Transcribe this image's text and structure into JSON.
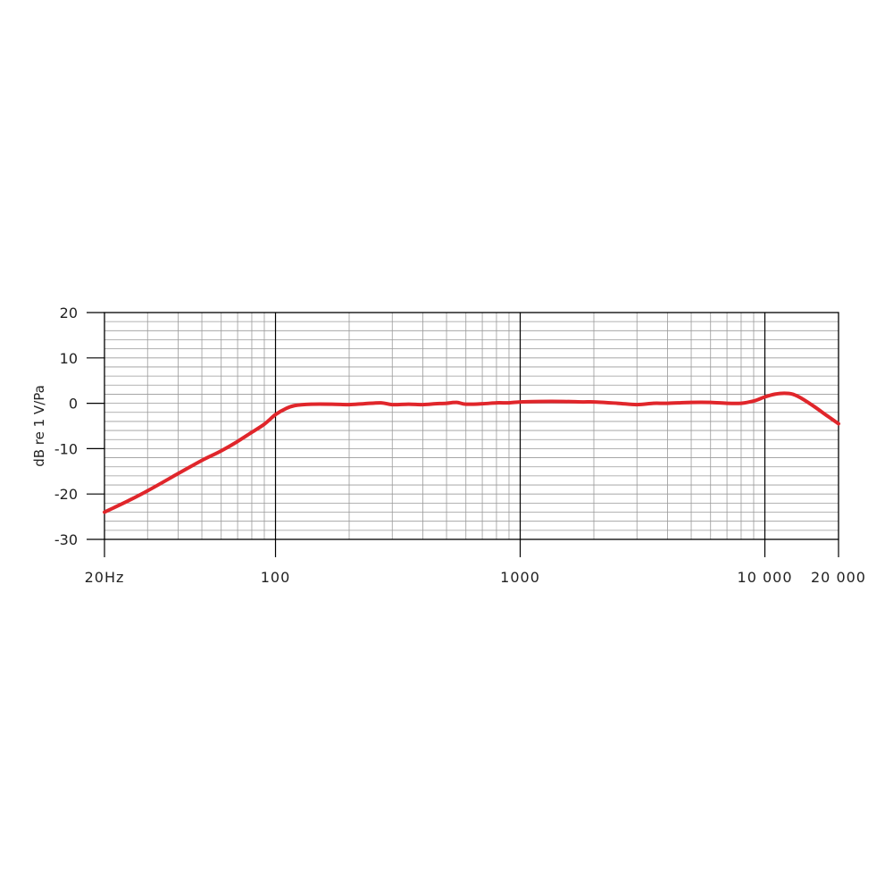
{
  "chart_data": {
    "type": "line",
    "xlabel": "",
    "ylabel": "dB re 1 V/Pa",
    "x_scale": "log",
    "xlim": [
      20,
      20000
    ],
    "ylim": [
      -30,
      20
    ],
    "grid": true,
    "x_ticks": [
      {
        "value": 20,
        "label": "20Hz"
      },
      {
        "value": 100,
        "label": "100"
      },
      {
        "value": 1000,
        "label": "1000"
      },
      {
        "value": 10000,
        "label": "10 000"
      },
      {
        "value": 20000,
        "label": "20 000"
      }
    ],
    "y_ticks": [
      {
        "value": 20,
        "label": "20"
      },
      {
        "value": 10,
        "label": "10"
      },
      {
        "value": 0,
        "label": "0"
      },
      {
        "value": -10,
        "label": "-10"
      },
      {
        "value": -20,
        "label": "-20"
      },
      {
        "value": -30,
        "label": "-30"
      }
    ],
    "series": [
      {
        "color": "#e0262b",
        "points": [
          [
            20,
            -24
          ],
          [
            25,
            -21.5
          ],
          [
            30,
            -19.3
          ],
          [
            40,
            -15.5
          ],
          [
            50,
            -12.6
          ],
          [
            60,
            -10.5
          ],
          [
            70,
            -8.4
          ],
          [
            80,
            -6.4
          ],
          [
            90,
            -4.6
          ],
          [
            100,
            -2.5
          ],
          [
            110,
            -1.2
          ],
          [
            120,
            -0.5
          ],
          [
            140,
            -0.2
          ],
          [
            170,
            -0.2
          ],
          [
            200,
            -0.3
          ],
          [
            230,
            -0.1
          ],
          [
            270,
            0.1
          ],
          [
            300,
            -0.3
          ],
          [
            350,
            -0.2
          ],
          [
            400,
            -0.3
          ],
          [
            450,
            -0.1
          ],
          [
            500,
            0.0
          ],
          [
            550,
            0.2
          ],
          [
            600,
            -0.2
          ],
          [
            700,
            -0.1
          ],
          [
            800,
            0.1
          ],
          [
            900,
            0.1
          ],
          [
            1000,
            0.3
          ],
          [
            1200,
            0.4
          ],
          [
            1500,
            0.4
          ],
          [
            1800,
            0.3
          ],
          [
            2000,
            0.3
          ],
          [
            2500,
            0.0
          ],
          [
            3000,
            -0.3
          ],
          [
            3500,
            0.0
          ],
          [
            4000,
            0.0
          ],
          [
            5000,
            0.2
          ],
          [
            6000,
            0.2
          ],
          [
            7000,
            0.0
          ],
          [
            8000,
            0.0
          ],
          [
            9000,
            0.5
          ],
          [
            10000,
            1.4
          ],
          [
            11000,
            2.0
          ],
          [
            12000,
            2.2
          ],
          [
            13000,
            2.0
          ],
          [
            14000,
            1.2
          ],
          [
            16000,
            -0.8
          ],
          [
            18000,
            -2.8
          ],
          [
            20000,
            -4.5
          ]
        ]
      }
    ]
  }
}
